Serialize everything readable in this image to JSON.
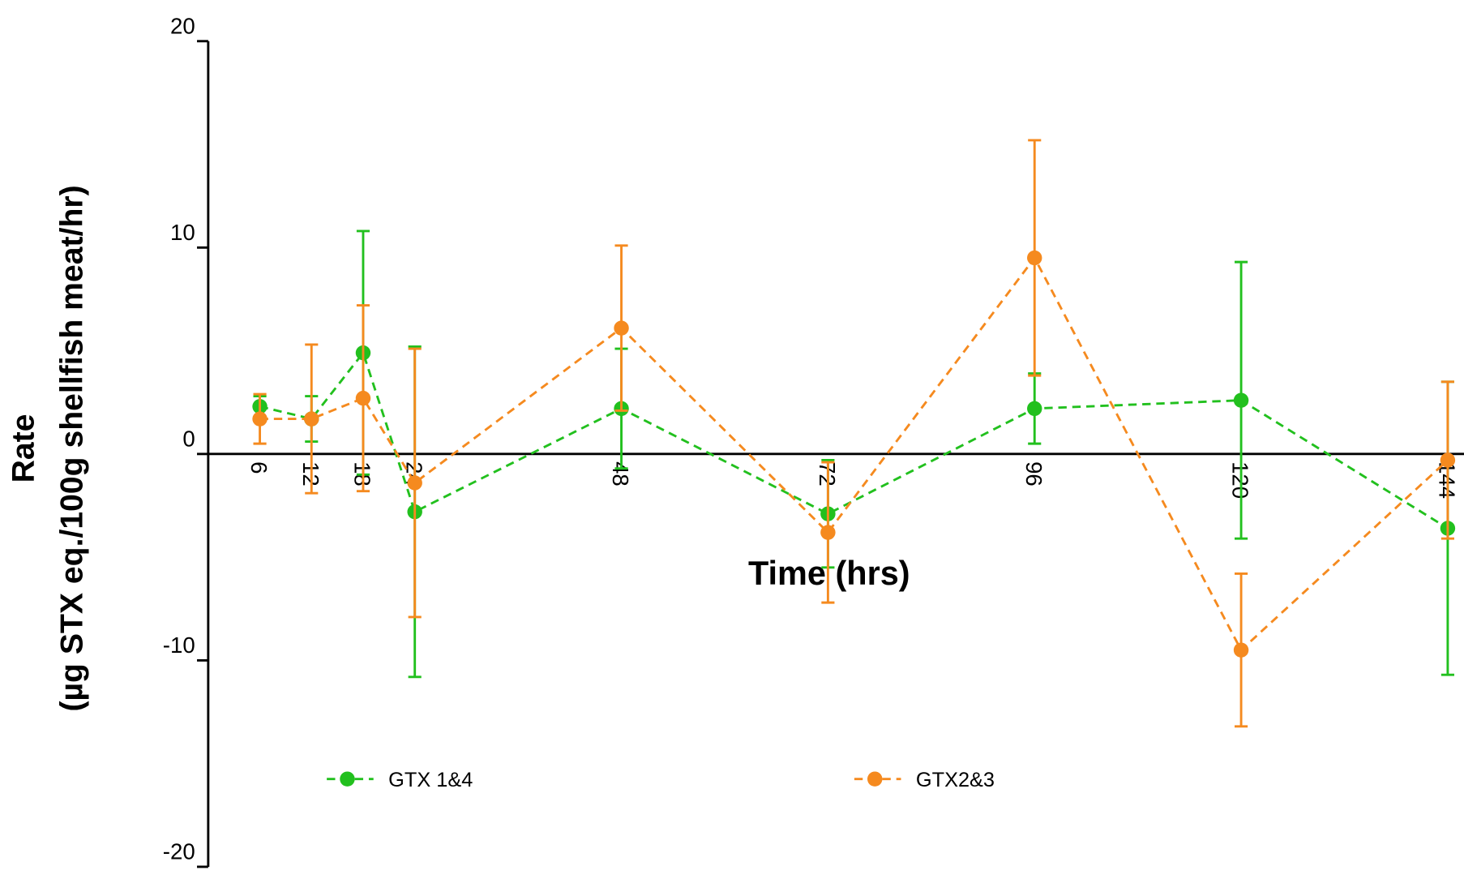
{
  "chart_data": {
    "type": "line",
    "x_label": "Time (hrs)",
    "y_label": [
      "Rate",
      "(µg STX eq./100g shellfish meat/hr)"
    ],
    "x": [
      6,
      12,
      18,
      24,
      48,
      72,
      96,
      120,
      144
    ],
    "series": [
      {
        "name": "GTX 1&4",
        "color": "#22c01e",
        "values": [
          2.3,
          1.7,
          4.9,
          -2.8,
          2.2,
          -2.9,
          2.2,
          2.6,
          -3.6
        ],
        "errors": [
          0.5,
          1.1,
          5.9,
          8.0,
          2.9,
          2.6,
          1.7,
          6.7,
          7.1
        ]
      },
      {
        "name": "GTX2&3",
        "color": "#f58a1f",
        "values": [
          1.7,
          1.7,
          2.7,
          -1.4,
          6.1,
          -3.8,
          9.5,
          -9.5,
          -0.3
        ],
        "errors": [
          1.2,
          3.6,
          4.5,
          6.5,
          4.0,
          3.4,
          5.7,
          3.7,
          3.8
        ]
      }
    ],
    "xlim": [
      0,
      146
    ],
    "xticks": [
      6,
      12,
      18,
      24,
      48,
      72,
      96,
      120,
      144
    ],
    "ylim": [
      -20,
      20
    ],
    "yticks": [
      -20,
      -10,
      0,
      10,
      20
    ],
    "legend": "bottom",
    "grid": false
  }
}
